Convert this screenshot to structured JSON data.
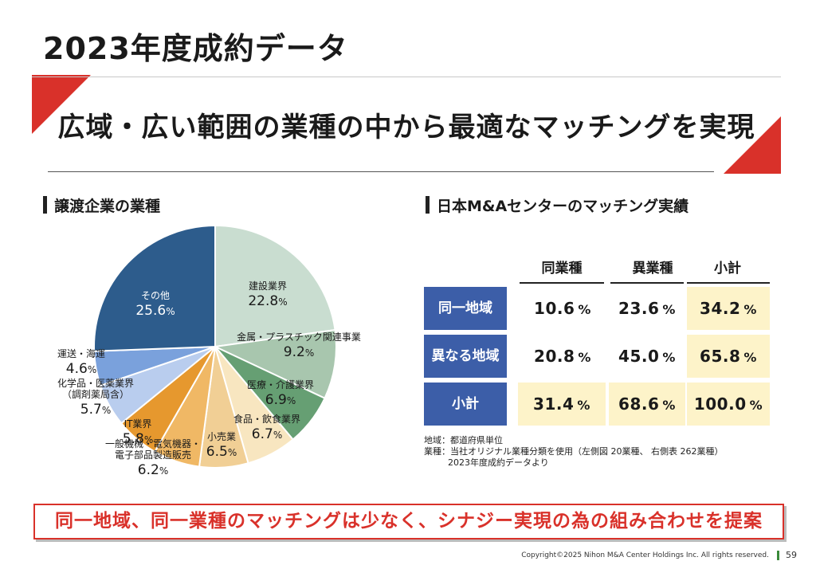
{
  "title": "2023年度成約データ",
  "subtitle": "広域・広い範囲の業種の中から最適なマッチングを実現",
  "pie_section_title": "譲渡企業の業種",
  "table_section_title": "日本M&Aセンターのマッチング実績",
  "chart_data": [
    {
      "type": "pie",
      "title": "譲渡企業の業種",
      "unit": "%",
      "slices": [
        {
          "name": "建設業界",
          "value": 22.8,
          "color": "#c9ddd0"
        },
        {
          "name": "金属・プラスチック関連事業",
          "value": 9.2,
          "color": "#a8c6ae"
        },
        {
          "name": "医療・介護業界",
          "value": 6.9,
          "color": "#669f73"
        },
        {
          "name": "食品・飲食業界",
          "value": 6.7,
          "color": "#f8e6c0"
        },
        {
          "name": "小売業",
          "value": 6.5,
          "color": "#f1cf95"
        },
        {
          "name": "一般機械・電気機器・電子部品製造販売",
          "value": 6.2,
          "color": "#f0b865"
        },
        {
          "name": "IT業界",
          "value": 5.8,
          "color": "#e6982e"
        },
        {
          "name": "化学品・医薬業界 （調剤薬局含）",
          "value": 5.7,
          "color": "#b9cdee"
        },
        {
          "name": "運送・海運",
          "value": 4.6,
          "color": "#7aa1dc"
        },
        {
          "name": "その他",
          "value": 25.6,
          "color": "#2d5c8c"
        }
      ]
    },
    {
      "type": "table",
      "title": "日本M&Aセンターのマッチング実績",
      "columns": [
        "同業種",
        "異業種",
        "小計"
      ],
      "rows": [
        {
          "label": "同一地域",
          "values": [
            "10.6",
            "23.6",
            "34.2"
          ]
        },
        {
          "label": "異なる地域",
          "values": [
            "20.8",
            "45.0",
            "65.8"
          ]
        },
        {
          "label": "小計",
          "values": [
            "31.4",
            "68.6",
            "100.0"
          ]
        }
      ],
      "unit": "%"
    }
  ],
  "notes": [
    "地域：都道府県単位",
    "業種：当社オリジナル業種分類を使用（左側図 20業種、 右側表 262業種）",
    "2023年度成約データより"
  ],
  "banner": "同一地域、同一業種のマッチングは少なく、シナジー実現の為の組み合わせを提案",
  "footer": {
    "copyright": "Copyright©2025 Nihon M&A Center Holdings Inc. All rights reserved.",
    "page": "59"
  },
  "colors": {
    "accent_red": "#d9312a",
    "row_header_blue": "#3c5ea8",
    "highlight_yellow": "#fdf3c9"
  }
}
